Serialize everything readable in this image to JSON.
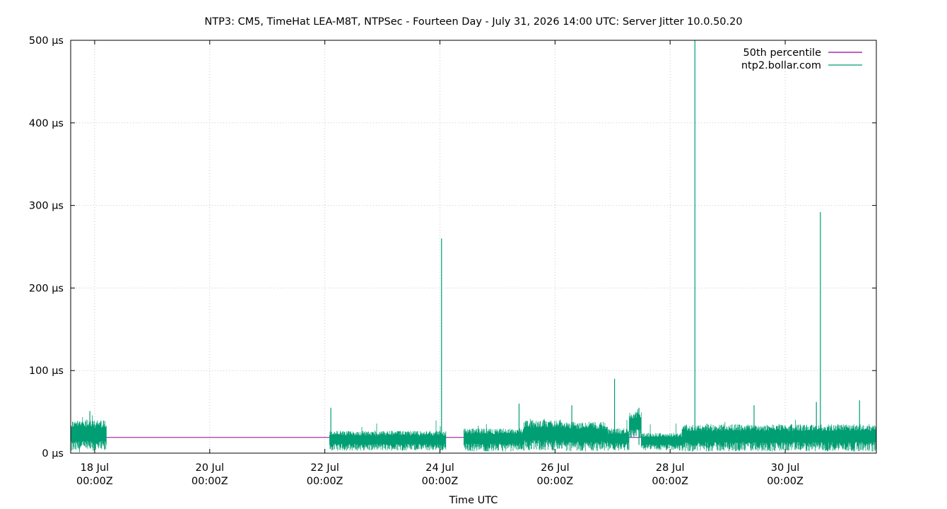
{
  "chart_data": {
    "type": "line",
    "title": "NTP3: CM5, TimeHat LEA-M8T, NTPSec - Fourteen Day - July 31, 2026 14:00 UTC: Server Jitter 10.0.50.20",
    "xlabel": "Time UTC",
    "ylabel": "",
    "x_range": [
      "2026-07-17T14:00Z",
      "2026-07-31T14:00Z"
    ],
    "ylim": [
      0,
      500
    ],
    "y_unit": "µs",
    "grid": true,
    "legend_position": "top-right",
    "x_ticks": [
      {
        "date": "2026-07-18T00:00Z",
        "line1": "18 Jul",
        "line2": "00:00Z"
      },
      {
        "date": "2026-07-20T00:00Z",
        "line1": "20 Jul",
        "line2": "00:00Z"
      },
      {
        "date": "2026-07-22T00:00Z",
        "line1": "22 Jul",
        "line2": "00:00Z"
      },
      {
        "date": "2026-07-24T00:00Z",
        "line1": "24 Jul",
        "line2": "00:00Z"
      },
      {
        "date": "2026-07-26T00:00Z",
        "line1": "26 Jul",
        "line2": "00:00Z"
      },
      {
        "date": "2026-07-28T00:00Z",
        "line1": "28 Jul",
        "line2": "00:00Z"
      },
      {
        "date": "2026-07-30T00:00Z",
        "line1": "30 Jul",
        "line2": "00:00Z"
      }
    ],
    "y_ticks": [
      {
        "value": 0,
        "label": "0 µs"
      },
      {
        "value": 100,
        "label": "100 µs"
      },
      {
        "value": 200,
        "label": "200 µs"
      },
      {
        "value": 300,
        "label": "300 µs"
      },
      {
        "value": 400,
        "label": "400 µs"
      },
      {
        "value": 500,
        "label": "500 µs"
      }
    ],
    "series": [
      {
        "name": "50th percentile",
        "color": "#94009e",
        "points": [
          {
            "t": "2026-07-17T14:00Z",
            "y": 19
          },
          {
            "t": "2026-07-31T14:00Z",
            "y": 19
          }
        ]
      },
      {
        "name": "ntp2.bollar.com",
        "color": "#009e73",
        "bands": [
          {
            "start": "2026-07-17T14:00Z",
            "end": "2026-07-18T05:00Z",
            "low": 1,
            "high": 40
          },
          {
            "start": "2026-07-22T02:00Z",
            "end": "2026-07-24T02:30Z",
            "low": 3,
            "high": 27
          },
          {
            "start": "2026-07-24T10:00Z",
            "end": "2026-07-25T11:00Z",
            "low": 2,
            "high": 30
          },
          {
            "start": "2026-07-25T11:00Z",
            "end": "2026-07-26T04:00Z",
            "low": 3,
            "high": 40
          },
          {
            "start": "2026-07-26T04:00Z",
            "end": "2026-07-26T22:00Z",
            "low": 2,
            "high": 38
          },
          {
            "start": "2026-07-26T22:00Z",
            "end": "2026-07-27T07:00Z",
            "low": 3,
            "high": 30
          },
          {
            "start": "2026-07-27T07:00Z",
            "end": "2026-07-27T12:00Z",
            "low": 18,
            "high": 50
          },
          {
            "start": "2026-07-27T12:00Z",
            "end": "2026-07-28T05:00Z",
            "low": 3,
            "high": 25
          },
          {
            "start": "2026-07-28T05:00Z",
            "end": "2026-07-31T14:00Z",
            "low": 2,
            "high": 35
          }
        ],
        "spikes": [
          {
            "t": "2026-07-17T22:00Z",
            "y": 51
          },
          {
            "t": "2026-07-22T02:30Z",
            "y": 55
          },
          {
            "t": "2026-07-24T00:40Z",
            "y": 260
          },
          {
            "t": "2026-07-25T09:00Z",
            "y": 60
          },
          {
            "t": "2026-07-26T07:00Z",
            "y": 58
          },
          {
            "t": "2026-07-27T00:50Z",
            "y": 90
          },
          {
            "t": "2026-07-27T11:00Z",
            "y": 55
          },
          {
            "t": "2026-07-28T10:20Z",
            "y": 500
          },
          {
            "t": "2026-07-29T11:00Z",
            "y": 58
          },
          {
            "t": "2026-07-30T13:00Z",
            "y": 62
          },
          {
            "t": "2026-07-30T14:40Z",
            "y": 292
          },
          {
            "t": "2026-07-31T07:00Z",
            "y": 64
          }
        ]
      }
    ]
  }
}
